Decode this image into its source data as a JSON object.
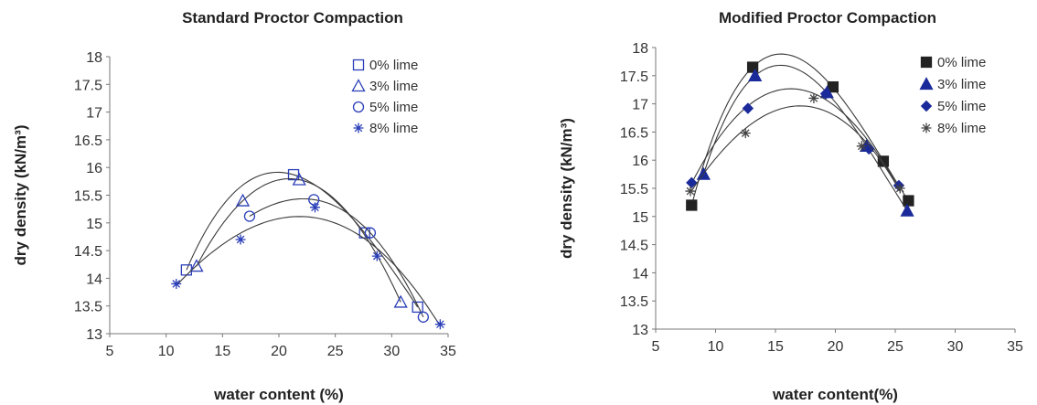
{
  "chart_data": [
    {
      "type": "scatter",
      "title": "Standard Proctor Compaction",
      "xlabel": "water content (%)",
      "ylabel": "dry density (kN/m³)",
      "xlim": [
        5,
        35
      ],
      "ylim": [
        13,
        18
      ],
      "xticks": [
        "5",
        "10",
        "15",
        "20",
        "25",
        "30",
        "35"
      ],
      "yticks": [
        "13",
        "13.5",
        "14",
        "14.5",
        "15",
        "15.5",
        "16",
        "16.5",
        "17",
        "17.5",
        "18"
      ],
      "grid": false,
      "legend_position": "top-right",
      "trendlines": true,
      "series": [
        {
          "name": "0% lime",
          "marker": "open-square",
          "color": "#2b3fb8",
          "points": [
            [
              11.8,
              14.15
            ],
            [
              21.3,
              15.87
            ],
            [
              27.6,
              14.82
            ],
            [
              32.3,
              13.48
            ]
          ]
        },
        {
          "name": "3% lime",
          "marker": "open-triangle",
          "color": "#2b3fb8",
          "points": [
            [
              12.7,
              14.22
            ],
            [
              16.8,
              15.4
            ],
            [
              21.8,
              15.78
            ],
            [
              30.8,
              13.57
            ]
          ]
        },
        {
          "name": "5% lime",
          "marker": "open-circle",
          "color": "#2b3fb8",
          "points": [
            [
              17.4,
              15.12
            ],
            [
              23.1,
              15.42
            ],
            [
              28.1,
              14.82
            ],
            [
              32.8,
              13.3
            ]
          ]
        },
        {
          "name": "8% lime",
          "marker": "asterisk",
          "color": "#2b3fb8",
          "points": [
            [
              10.9,
              13.9
            ],
            [
              16.6,
              14.7
            ],
            [
              23.2,
              15.28
            ],
            [
              28.7,
              14.4
            ],
            [
              34.3,
              13.17
            ]
          ]
        }
      ]
    },
    {
      "type": "scatter",
      "title": "Modified Proctor Compaction",
      "xlabel": "water content(%)",
      "ylabel": "dry density (kN/m³)",
      "xlim": [
        5,
        35
      ],
      "ylim": [
        13,
        18
      ],
      "xticks": [
        "5",
        "10",
        "15",
        "20",
        "25",
        "30",
        "35"
      ],
      "yticks": [
        "13",
        "13.5",
        "14",
        "14.5",
        "15",
        "15.5",
        "16",
        "16.5",
        "17",
        "17.5",
        "18"
      ],
      "grid": false,
      "legend_position": "top-right",
      "trendlines": true,
      "series": [
        {
          "name": "0% lime",
          "marker": "filled-square",
          "color": "#222222",
          "points": [
            [
              8,
              15.2
            ],
            [
              13.1,
              17.65
            ],
            [
              19.8,
              17.3
            ],
            [
              24,
              15.98
            ],
            [
              26.1,
              15.28
            ]
          ]
        },
        {
          "name": "3% lime",
          "marker": "filled-triangle",
          "color": "#1a2a9a",
          "points": [
            [
              9,
              15.75
            ],
            [
              13.3,
              17.5
            ],
            [
              19.3,
              17.2
            ],
            [
              22.6,
              16.25
            ],
            [
              26,
              15.1
            ]
          ]
        },
        {
          "name": "5% lime",
          "marker": "filled-diamond",
          "color": "#1a2a9a",
          "points": [
            [
              8,
              15.6
            ],
            [
              12.7,
              16.92
            ],
            [
              19.2,
              17.18
            ],
            [
              22.8,
              16.2
            ],
            [
              25.3,
              15.55
            ]
          ]
        },
        {
          "name": "8% lime",
          "marker": "asterisk",
          "color": "#444444",
          "points": [
            [
              7.9,
              15.45
            ],
            [
              12.5,
              16.48
            ],
            [
              18.2,
              17.1
            ],
            [
              22.2,
              16.25
            ],
            [
              25.4,
              15.5
            ]
          ]
        }
      ]
    }
  ]
}
